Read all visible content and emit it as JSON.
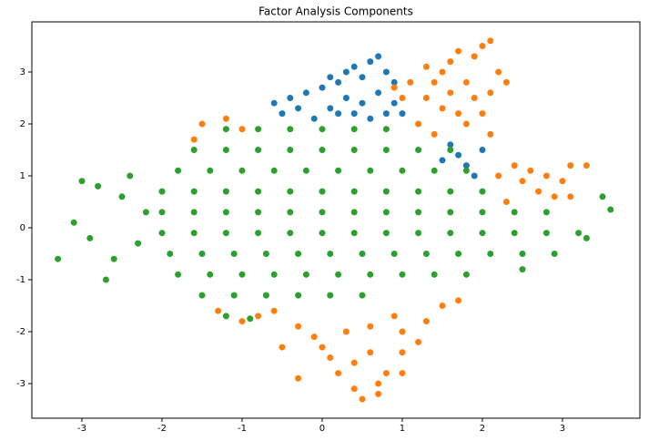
{
  "chart_data": {
    "type": "scatter",
    "title": "Factor Analysis Components",
    "xlim": [
      -3.625,
      3.966
    ],
    "ylim": [
      -3.667,
      3.965
    ],
    "xticks": [
      -3,
      -2,
      -1,
      0,
      1,
      2,
      3
    ],
    "yticks": [
      -3,
      -2,
      -1,
      0,
      1,
      2,
      3
    ],
    "grid": false,
    "series": [
      {
        "color": "#1f77b4",
        "x": [
          -0.6,
          -0.5,
          -0.4,
          -0.2,
          0,
          0.1,
          0.2,
          0.3,
          0.4,
          0.5,
          0.6,
          0.7,
          0.8,
          0.9,
          0.3,
          0.1,
          -0.1,
          0.5,
          0.7,
          0.9,
          1.0,
          1.6,
          1.7,
          1.8,
          1.9,
          2.0,
          1.5,
          0.2,
          0.4,
          0.6,
          -0.3,
          0.8
        ],
        "values": [
          2.4,
          2.2,
          2.5,
          2.6,
          2.7,
          2.9,
          2.8,
          3.0,
          3.1,
          2.9,
          3.2,
          3.3,
          3.0,
          2.8,
          2.5,
          2.3,
          2.1,
          2.4,
          2.6,
          2.4,
          2.2,
          1.6,
          1.4,
          1.2,
          1.0,
          1.5,
          1.3,
          2.2,
          2.2,
          2.1,
          2.3,
          2.2
        ]
      },
      {
        "color": "#ff7f0e",
        "x": [
          1.2,
          1.3,
          1.4,
          1.5,
          1.6,
          1.7,
          1.9,
          2.0,
          2.1,
          2.2,
          2.1,
          2.0,
          1.8,
          1.6,
          1.5,
          1.8,
          1.9,
          1.7,
          1.3,
          1.1,
          1.0,
          0.9,
          2.3,
          1.4,
          2.1,
          2.2,
          2.4,
          2.5,
          2.6,
          2.8,
          3.0,
          3.1,
          3.3,
          2.7,
          2.9,
          3.1,
          2.3,
          -0.6,
          -0.3,
          -0.1,
          0,
          0.1,
          0.2,
          -0.3,
          0.4,
          0.5,
          0.6,
          0.7,
          0.7,
          0.8,
          1.0,
          1.2,
          1.0,
          1.3,
          1.5,
          1.7,
          0.3,
          0.6,
          0.9,
          -0.5,
          0.4,
          1.0,
          -1.5,
          -1.2,
          -1.0,
          -1.6,
          -1.3,
          -1.0,
          -0.8
        ],
        "values": [
          2.0,
          2.5,
          2.8,
          3.0,
          3.2,
          3.4,
          3.3,
          3.5,
          3.6,
          3.0,
          2.6,
          2.2,
          2.8,
          2.6,
          2.3,
          2.0,
          2.5,
          2.2,
          3.1,
          2.8,
          2.5,
          2.7,
          2.8,
          1.8,
          1.8,
          1.0,
          1.2,
          0.9,
          1.1,
          1.0,
          0.9,
          1.2,
          1.2,
          0.7,
          0.6,
          0.6,
          0.5,
          -1.6,
          -1.9,
          -2.1,
          -2.3,
          -2.5,
          -2.8,
          -2.9,
          -2.6,
          -3.3,
          -2.4,
          -3.0,
          -3.2,
          -2.8,
          -2.4,
          -2.2,
          -2.0,
          -1.8,
          -1.5,
          -1.4,
          -2.0,
          -1.9,
          -1.7,
          -2.3,
          -3.1,
          -2.8,
          2.0,
          2.1,
          1.9,
          1.7,
          -1.6,
          -1.8,
          -1.7
        ]
      },
      {
        "color": "#2ca02c",
        "x": [
          -1.2,
          -0.8,
          -0.4,
          0,
          0.4,
          0.8,
          -1.6,
          -1.2,
          -0.8,
          -0.4,
          0,
          0.4,
          0.8,
          1.2,
          1.6,
          -1.8,
          -1.4,
          -1.0,
          -0.6,
          -0.2,
          0.2,
          0.6,
          1.0,
          1.4,
          1.8,
          -2.0,
          -1.6,
          -1.2,
          -0.8,
          -0.4,
          0,
          0.4,
          0.8,
          1.2,
          1.6,
          2.0,
          -2.0,
          -1.6,
          -1.2,
          -0.8,
          -0.4,
          0,
          0.4,
          0.8,
          1.2,
          1.6,
          2.0,
          2.4,
          2.8,
          -2.0,
          -1.6,
          -1.2,
          -0.8,
          -0.4,
          0,
          0.4,
          0.8,
          1.2,
          1.6,
          2.0,
          2.4,
          2.8,
          3.2,
          -1.9,
          -1.5,
          -1.1,
          -0.7,
          -0.3,
          0.1,
          0.5,
          0.9,
          1.3,
          1.7,
          2.1,
          2.5,
          2.9,
          -1.8,
          -1.4,
          -1.0,
          -0.6,
          -0.2,
          0.2,
          0.6,
          1.0,
          1.4,
          1.8,
          -1.5,
          -1.1,
          -0.7,
          -0.3,
          0.1,
          0.5,
          -3.3,
          -3.0,
          -3.1,
          -2.9,
          -2.7,
          -2.8,
          -2.6,
          -2.5,
          -2.3,
          -2.4,
          3.5,
          3.6,
          3.3,
          2.5,
          -1.2,
          -0.9,
          -2.2
        ],
        "values": [
          1.9,
          1.9,
          1.9,
          1.9,
          1.9,
          1.9,
          1.5,
          1.5,
          1.5,
          1.5,
          1.5,
          1.5,
          1.5,
          1.5,
          1.5,
          1.1,
          1.1,
          1.1,
          1.1,
          1.1,
          1.1,
          1.1,
          1.1,
          1.1,
          1.1,
          0.7,
          0.7,
          0.7,
          0.7,
          0.7,
          0.7,
          0.7,
          0.7,
          0.7,
          0.7,
          0.7,
          0.3,
          0.3,
          0.3,
          0.3,
          0.3,
          0.3,
          0.3,
          0.3,
          0.3,
          0.3,
          0.3,
          0.3,
          0.3,
          -0.1,
          -0.1,
          -0.1,
          -0.1,
          -0.1,
          -0.1,
          -0.1,
          -0.1,
          -0.1,
          -0.1,
          -0.1,
          -0.1,
          -0.1,
          -0.1,
          -0.5,
          -0.5,
          -0.5,
          -0.5,
          -0.5,
          -0.5,
          -0.5,
          -0.5,
          -0.5,
          -0.5,
          -0.5,
          -0.5,
          -0.5,
          -0.9,
          -0.9,
          -0.9,
          -0.9,
          -0.9,
          -0.9,
          -0.9,
          -0.9,
          -0.9,
          -0.9,
          -1.3,
          -1.3,
          -1.3,
          -1.3,
          -1.3,
          -1.3,
          -0.6,
          0.9,
          0.1,
          -0.2,
          -1.0,
          0.8,
          -0.6,
          0.6,
          -0.3,
          1.0,
          0.6,
          0.35,
          -0.2,
          -0.8,
          -1.7,
          -1.75,
          0.3
        ]
      }
    ]
  }
}
